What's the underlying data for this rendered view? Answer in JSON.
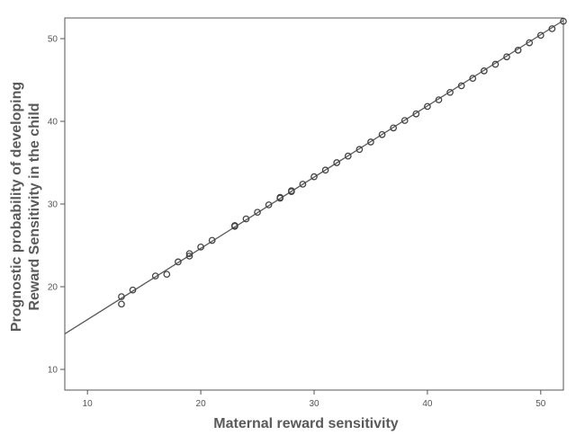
{
  "chart_data": {
    "type": "scatter",
    "xlabel": "Maternal reward sensitivity",
    "ylabel_lines": [
      "Prognostic probability of developing",
      "Reward Sensitivity in the child"
    ],
    "xlim": [
      8,
      52
    ],
    "ylim": [
      7.5,
      52.5
    ],
    "x_ticks": [
      10,
      20,
      30,
      40,
      50
    ],
    "y_ticks": [
      10,
      20,
      30,
      40,
      50
    ],
    "grid": false,
    "fit_line": {
      "x": [
        8,
        52
      ],
      "y": [
        14.3,
        52.2
      ]
    },
    "points": {
      "x": [
        13,
        13,
        14,
        16,
        17,
        18,
        19,
        19,
        20,
        21,
        23,
        23,
        24,
        25,
        26,
        27,
        27,
        28,
        28,
        29,
        30,
        31,
        32,
        33,
        34,
        35,
        36,
        37,
        38,
        39,
        40,
        41,
        42,
        43,
        44,
        45,
        46,
        47,
        48,
        49,
        50,
        51,
        52
      ],
      "y": [
        18.8,
        17.9,
        19.6,
        21.3,
        21.5,
        23.0,
        23.7,
        24.0,
        24.8,
        25.6,
        27.3,
        27.4,
        28.2,
        29.0,
        29.9,
        30.7,
        30.8,
        31.5,
        31.6,
        32.4,
        33.3,
        34.1,
        35.0,
        35.8,
        36.6,
        37.5,
        38.4,
        39.2,
        40.1,
        40.9,
        41.8,
        42.6,
        43.5,
        44.3,
        45.2,
        46.1,
        46.9,
        47.8,
        48.6,
        49.5,
        50.4,
        51.2,
        52.1
      ]
    },
    "colors": {
      "frame": "#555555",
      "line": "#5a5a5a",
      "marker": "#444444",
      "background": "#ffffff"
    }
  }
}
